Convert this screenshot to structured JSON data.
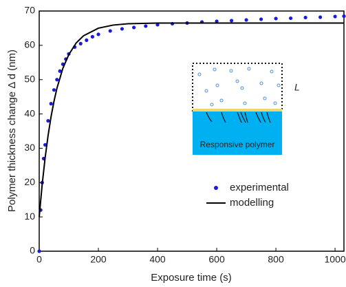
{
  "chart_data": {
    "type": "line",
    "xlabel": "Exposure time (s)",
    "ylabel": "Polymer thickness change  Δ d (nm)",
    "xlim": [
      0,
      1030
    ],
    "xticks": [
      0,
      200,
      400,
      600,
      800,
      1000
    ],
    "ylim": [
      0,
      70
    ],
    "yticks": [
      0,
      10,
      20,
      30,
      40,
      50,
      60,
      70
    ],
    "legend": "lower-right",
    "series": [
      {
        "name": "experimental",
        "type": "scatter",
        "color": "#1a1adb",
        "x": [
          0,
          5,
          10,
          15,
          20,
          30,
          40,
          50,
          60,
          70,
          80,
          90,
          100,
          120,
          140,
          160,
          180,
          200,
          240,
          280,
          320,
          360,
          400,
          450,
          500,
          550,
          600,
          650,
          700,
          750,
          800,
          850,
          900,
          950,
          1000,
          1030
        ],
        "values": [
          0,
          12,
          20,
          27,
          31,
          38,
          43,
          47,
          50,
          52.5,
          54.5,
          56,
          57.5,
          59.5,
          60.5,
          61.5,
          62.5,
          63.2,
          64.2,
          64.8,
          65.2,
          65.6,
          66,
          66.3,
          66.5,
          66.8,
          67,
          67.2,
          67.4,
          67.6,
          67.8,
          67.9,
          68.1,
          68.2,
          68.4,
          68.5
        ]
      },
      {
        "name": "modelling",
        "type": "line",
        "color": "#000000",
        "x": [
          0,
          10,
          20,
          30,
          40,
          50,
          60,
          80,
          100,
          125,
          150,
          200,
          250,
          300,
          400,
          600,
          800,
          1030
        ],
        "values": [
          10,
          19.4,
          27.2,
          33.7,
          39.2,
          43.7,
          47.5,
          53.3,
          57.3,
          60.7,
          62.8,
          65,
          65.9,
          66.3,
          66.5,
          66.5,
          66.5,
          66.5
        ]
      }
    ],
    "annotations": [
      "L",
      "Responsive polymer"
    ]
  }
}
